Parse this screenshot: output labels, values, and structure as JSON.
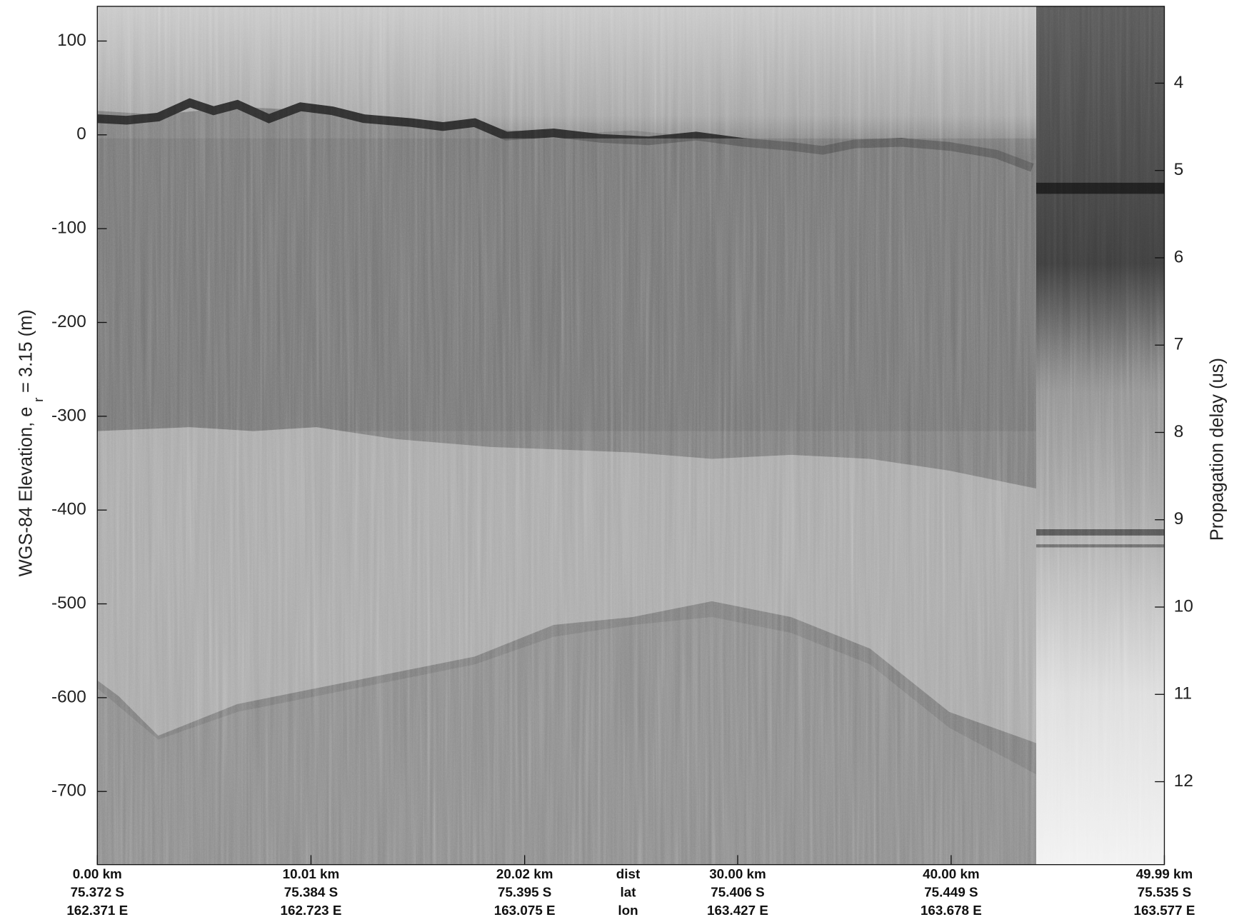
{
  "chart_data": {
    "type": "radargram",
    "ylabel": {
      "text": "WGS-84 Elevation, e",
      "subscript": "r",
      "suffix": "= 3.15 (m)"
    },
    "y2label": "Propagation delay (us)",
    "xlim": [
      0,
      49.99
    ],
    "ylim": [
      -778,
      137
    ],
    "y2lim": [
      12.95,
      3.12
    ],
    "xticks": [
      {
        "value": 0,
        "label": "0.00 km"
      },
      {
        "value": 10.01,
        "label": "10.01 km"
      },
      {
        "value": 20.02,
        "label": "20.02 km"
      },
      {
        "value": 30,
        "label": "30.00 km"
      },
      {
        "value": 40,
        "label": "40.00 km"
      },
      {
        "value": 49.99,
        "label": "49.99 km"
      }
    ],
    "xtick_lat": [
      "75.372 S",
      "75.384 S",
      "75.395 S",
      "75.406 S",
      "75.449 S",
      "75.535 S"
    ],
    "xtick_lon": [
      "162.371 E",
      "162.723 E",
      "163.075 E",
      "163.427 E",
      "163.678 E",
      "163.577 E"
    ],
    "x_row_labels": [
      "dist",
      "lat",
      "lon"
    ],
    "yticks": [
      -700,
      -600,
      -500,
      -400,
      -300,
      -200,
      -100,
      0,
      100
    ],
    "y2ticks": [
      4,
      5,
      6,
      7,
      8,
      9,
      10,
      11,
      12
    ]
  }
}
